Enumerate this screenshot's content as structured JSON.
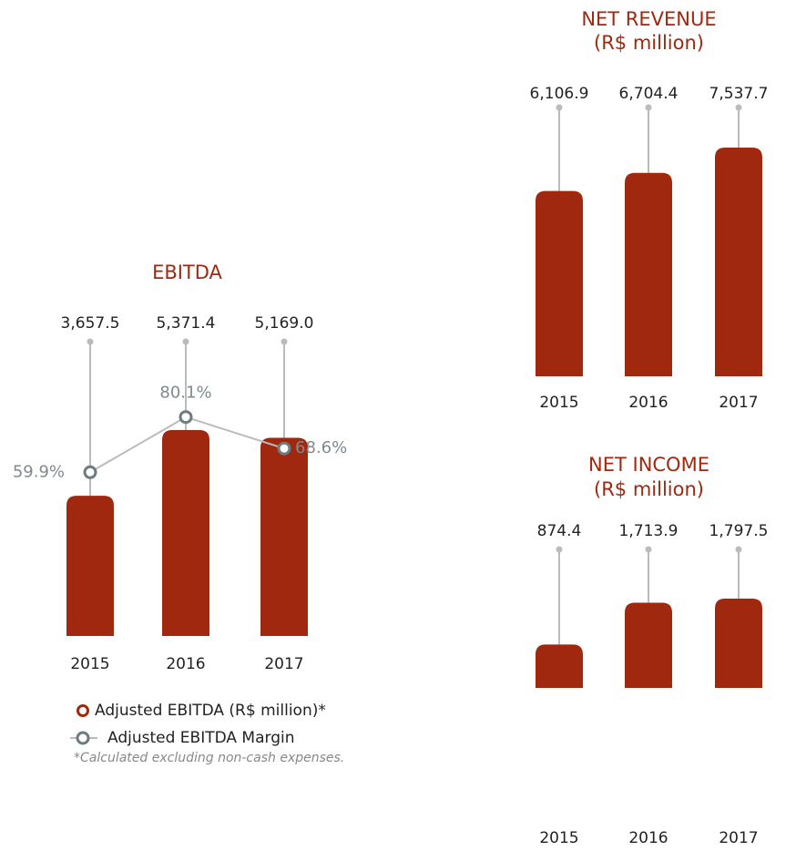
{
  "chart_data": [
    {
      "type": "bar",
      "title": "EBITDA",
      "categories": [
        "2015",
        "2016",
        "2017"
      ],
      "series": [
        {
          "name": "Adjusted EBITDA (R$ million)*",
          "color": "#a0280f",
          "values": [
            3657.5,
            5371.4,
            5169.0
          ],
          "value_labels": [
            "3,657.5",
            "5,371.4",
            "5,169.0"
          ]
        },
        {
          "name": "Adjusted EBITDA Margin",
          "color": "#6e7b82",
          "axis": "y2",
          "values": [
            59.9,
            80.1,
            68.6
          ],
          "value_labels": [
            "59.9%",
            "80.1%",
            "68.6%"
          ]
        }
      ],
      "note": "*Calculated excluding non-cash expenses."
    },
    {
      "type": "bar",
      "title": "NET REVENUE",
      "subtitle": "(R$ million)",
      "categories": [
        "2015",
        "2016",
        "2017"
      ],
      "series": [
        {
          "color": "#a0280f",
          "values": [
            6106.9,
            6704.4,
            7537.7
          ],
          "value_labels": [
            "6,106.9",
            "6,704.4",
            "7,537.7"
          ]
        }
      ]
    },
    {
      "type": "bar",
      "title": "NET INCOME",
      "subtitle": "(R$ million)",
      "categories": [
        "2015",
        "2016",
        "2017"
      ],
      "series": [
        {
          "color": "#a0280f",
          "values": [
            874.4,
            1713.9,
            1797.5
          ],
          "value_labels": [
            "874.4",
            "1,713.9",
            "1,797.5"
          ]
        }
      ]
    }
  ]
}
